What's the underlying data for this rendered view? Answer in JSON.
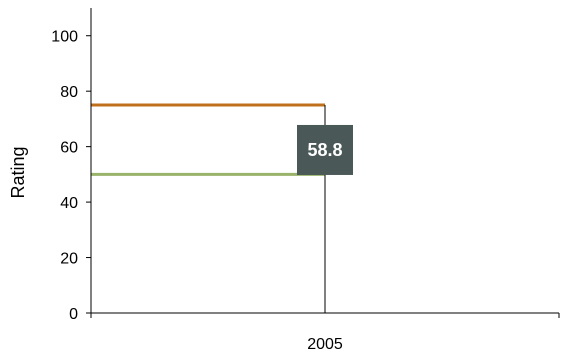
{
  "chart_data": {
    "type": "line",
    "ylabel": "Rating",
    "xlabel": "",
    "title": "",
    "ylim": [
      0,
      110
    ],
    "yticks": [
      0,
      20,
      40,
      60,
      80,
      100
    ],
    "categories": [
      "2005"
    ],
    "series": [
      {
        "values": [
          75
        ],
        "color": "#c0701c"
      },
      {
        "values": [
          50
        ],
        "color": "#9ab36a"
      }
    ],
    "annotation": {
      "category": "2005",
      "value": 58.8,
      "label": "58.8",
      "box_color": "#4a5858"
    },
    "grid": false
  }
}
